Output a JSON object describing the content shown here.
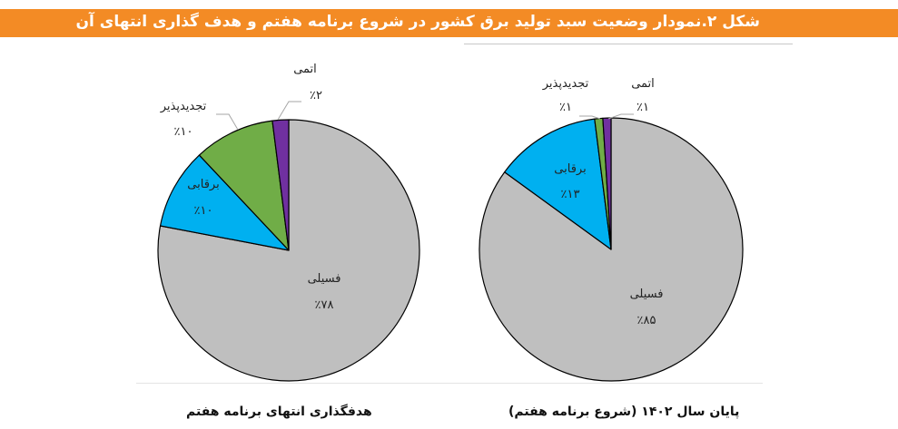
{
  "figure": {
    "title": "شکل ۲.نمودار وضعیت سبد تولید برق کشور در شروع برنامه هفتم و هدف گذاری انتهای آن",
    "banner_color": "#F38B25"
  },
  "colors": {
    "fossil": "#BFBFBF",
    "hydro": "#00B0F0",
    "renewable": "#70AD47",
    "nuclear": "#7030A0"
  },
  "chart_data": [
    {
      "type": "pie",
      "title": "هدفگذاری انتهای برنامه هفتم",
      "categories": [
        "فسیلی",
        "برقابی",
        "تجدیدپذیر",
        "اتمی"
      ],
      "values": [
        78,
        10,
        10,
        2
      ],
      "labels": [
        "٪۷۸",
        "٪۱۰",
        "٪۱۰",
        "٪۲"
      ],
      "unit": "%"
    },
    {
      "type": "pie",
      "title": "پایان سال ۱۴۰۲ (شروع برنامه هفتم)",
      "categories": [
        "فسیلی",
        "برقابی",
        "تجدیدپذیر",
        "اتمی"
      ],
      "values": [
        85,
        13,
        1,
        1
      ],
      "labels": [
        "٪۸۵",
        "٪۱۳",
        "٪۱",
        "٪۱"
      ],
      "unit": "%"
    }
  ]
}
